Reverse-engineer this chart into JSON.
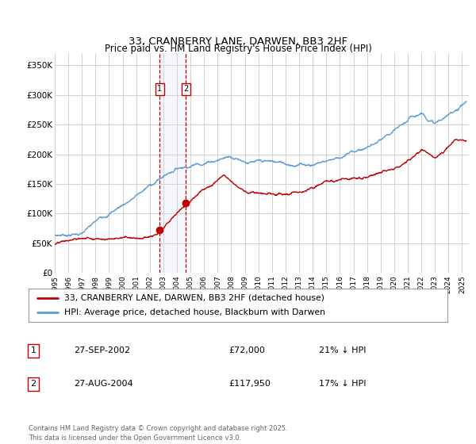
{
  "title": "33, CRANBERRY LANE, DARWEN, BB3 2HF",
  "subtitle": "Price paid vs. HM Land Registry's House Price Index (HPI)",
  "ylabel_ticks": [
    "£0",
    "£50K",
    "£100K",
    "£150K",
    "£200K",
    "£250K",
    "£300K",
    "£350K"
  ],
  "ytick_vals": [
    0,
    50000,
    100000,
    150000,
    200000,
    250000,
    300000,
    350000
  ],
  "ylim": [
    0,
    370000
  ],
  "xlim_start": 1995.0,
  "xlim_end": 2025.5,
  "sale1_date": 2002.74,
  "sale2_date": 2004.65,
  "sale1_price": 72000,
  "sale2_price": 117950,
  "hpi_color": "#5b9bd5",
  "price_color": "#c00000",
  "grid_color": "#cccccc",
  "footer_text": "Contains HM Land Registry data © Crown copyright and database right 2025.\nThis data is licensed under the Open Government Licence v3.0.",
  "legend_label1": "33, CRANBERRY LANE, DARWEN, BB3 2HF (detached house)",
  "legend_label2": "HPI: Average price, detached house, Blackburn with Darwen",
  "table_rows": [
    {
      "num": "1",
      "date": "27-SEP-2002",
      "price": "£72,000",
      "note": "21% ↓ HPI"
    },
    {
      "num": "2",
      "date": "27-AUG-2004",
      "price": "£117,950",
      "note": "17% ↓ HPI"
    }
  ],
  "xtick_years": [
    1995,
    1996,
    1997,
    1998,
    1999,
    2000,
    2001,
    2002,
    2003,
    2004,
    2005,
    2006,
    2007,
    2008,
    2009,
    2010,
    2011,
    2012,
    2013,
    2014,
    2015,
    2016,
    2017,
    2018,
    2019,
    2020,
    2021,
    2022,
    2023,
    2024,
    2025
  ]
}
